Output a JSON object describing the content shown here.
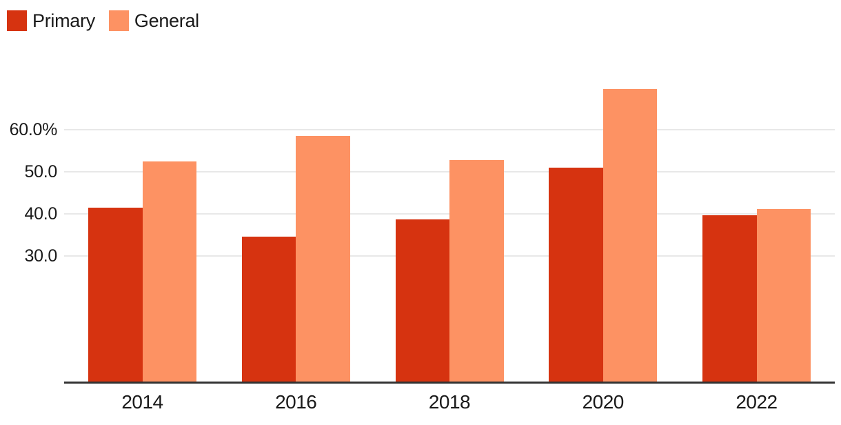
{
  "chart_data": {
    "type": "bar",
    "title": "",
    "xlabel": "",
    "ylabel": "",
    "categories": [
      "2014",
      "2016",
      "2018",
      "2020",
      "2022"
    ],
    "series": [
      {
        "name": "Primary",
        "color": "#d63310",
        "values": [
          41.4,
          34.5,
          38.6,
          51.0,
          39.6
        ]
      },
      {
        "name": "General",
        "color": "#fd9263",
        "values": [
          52.4,
          58.5,
          52.7,
          69.7,
          41.1
        ]
      }
    ],
    "y_ticks": [
      {
        "value": 30,
        "label": "30.0"
      },
      {
        "value": 40,
        "label": "40.0"
      },
      {
        "value": 50,
        "label": "50.0"
      },
      {
        "value": 60,
        "label": "60.0%"
      }
    ],
    "ylim": [
      0,
      75
    ],
    "grid": "horizontal",
    "legend_position": "top-left",
    "colors": {
      "axis_line": "#333333",
      "gridline": "#e8e8e8",
      "text": "#1a1a1a",
      "background": "#ffffff"
    }
  }
}
